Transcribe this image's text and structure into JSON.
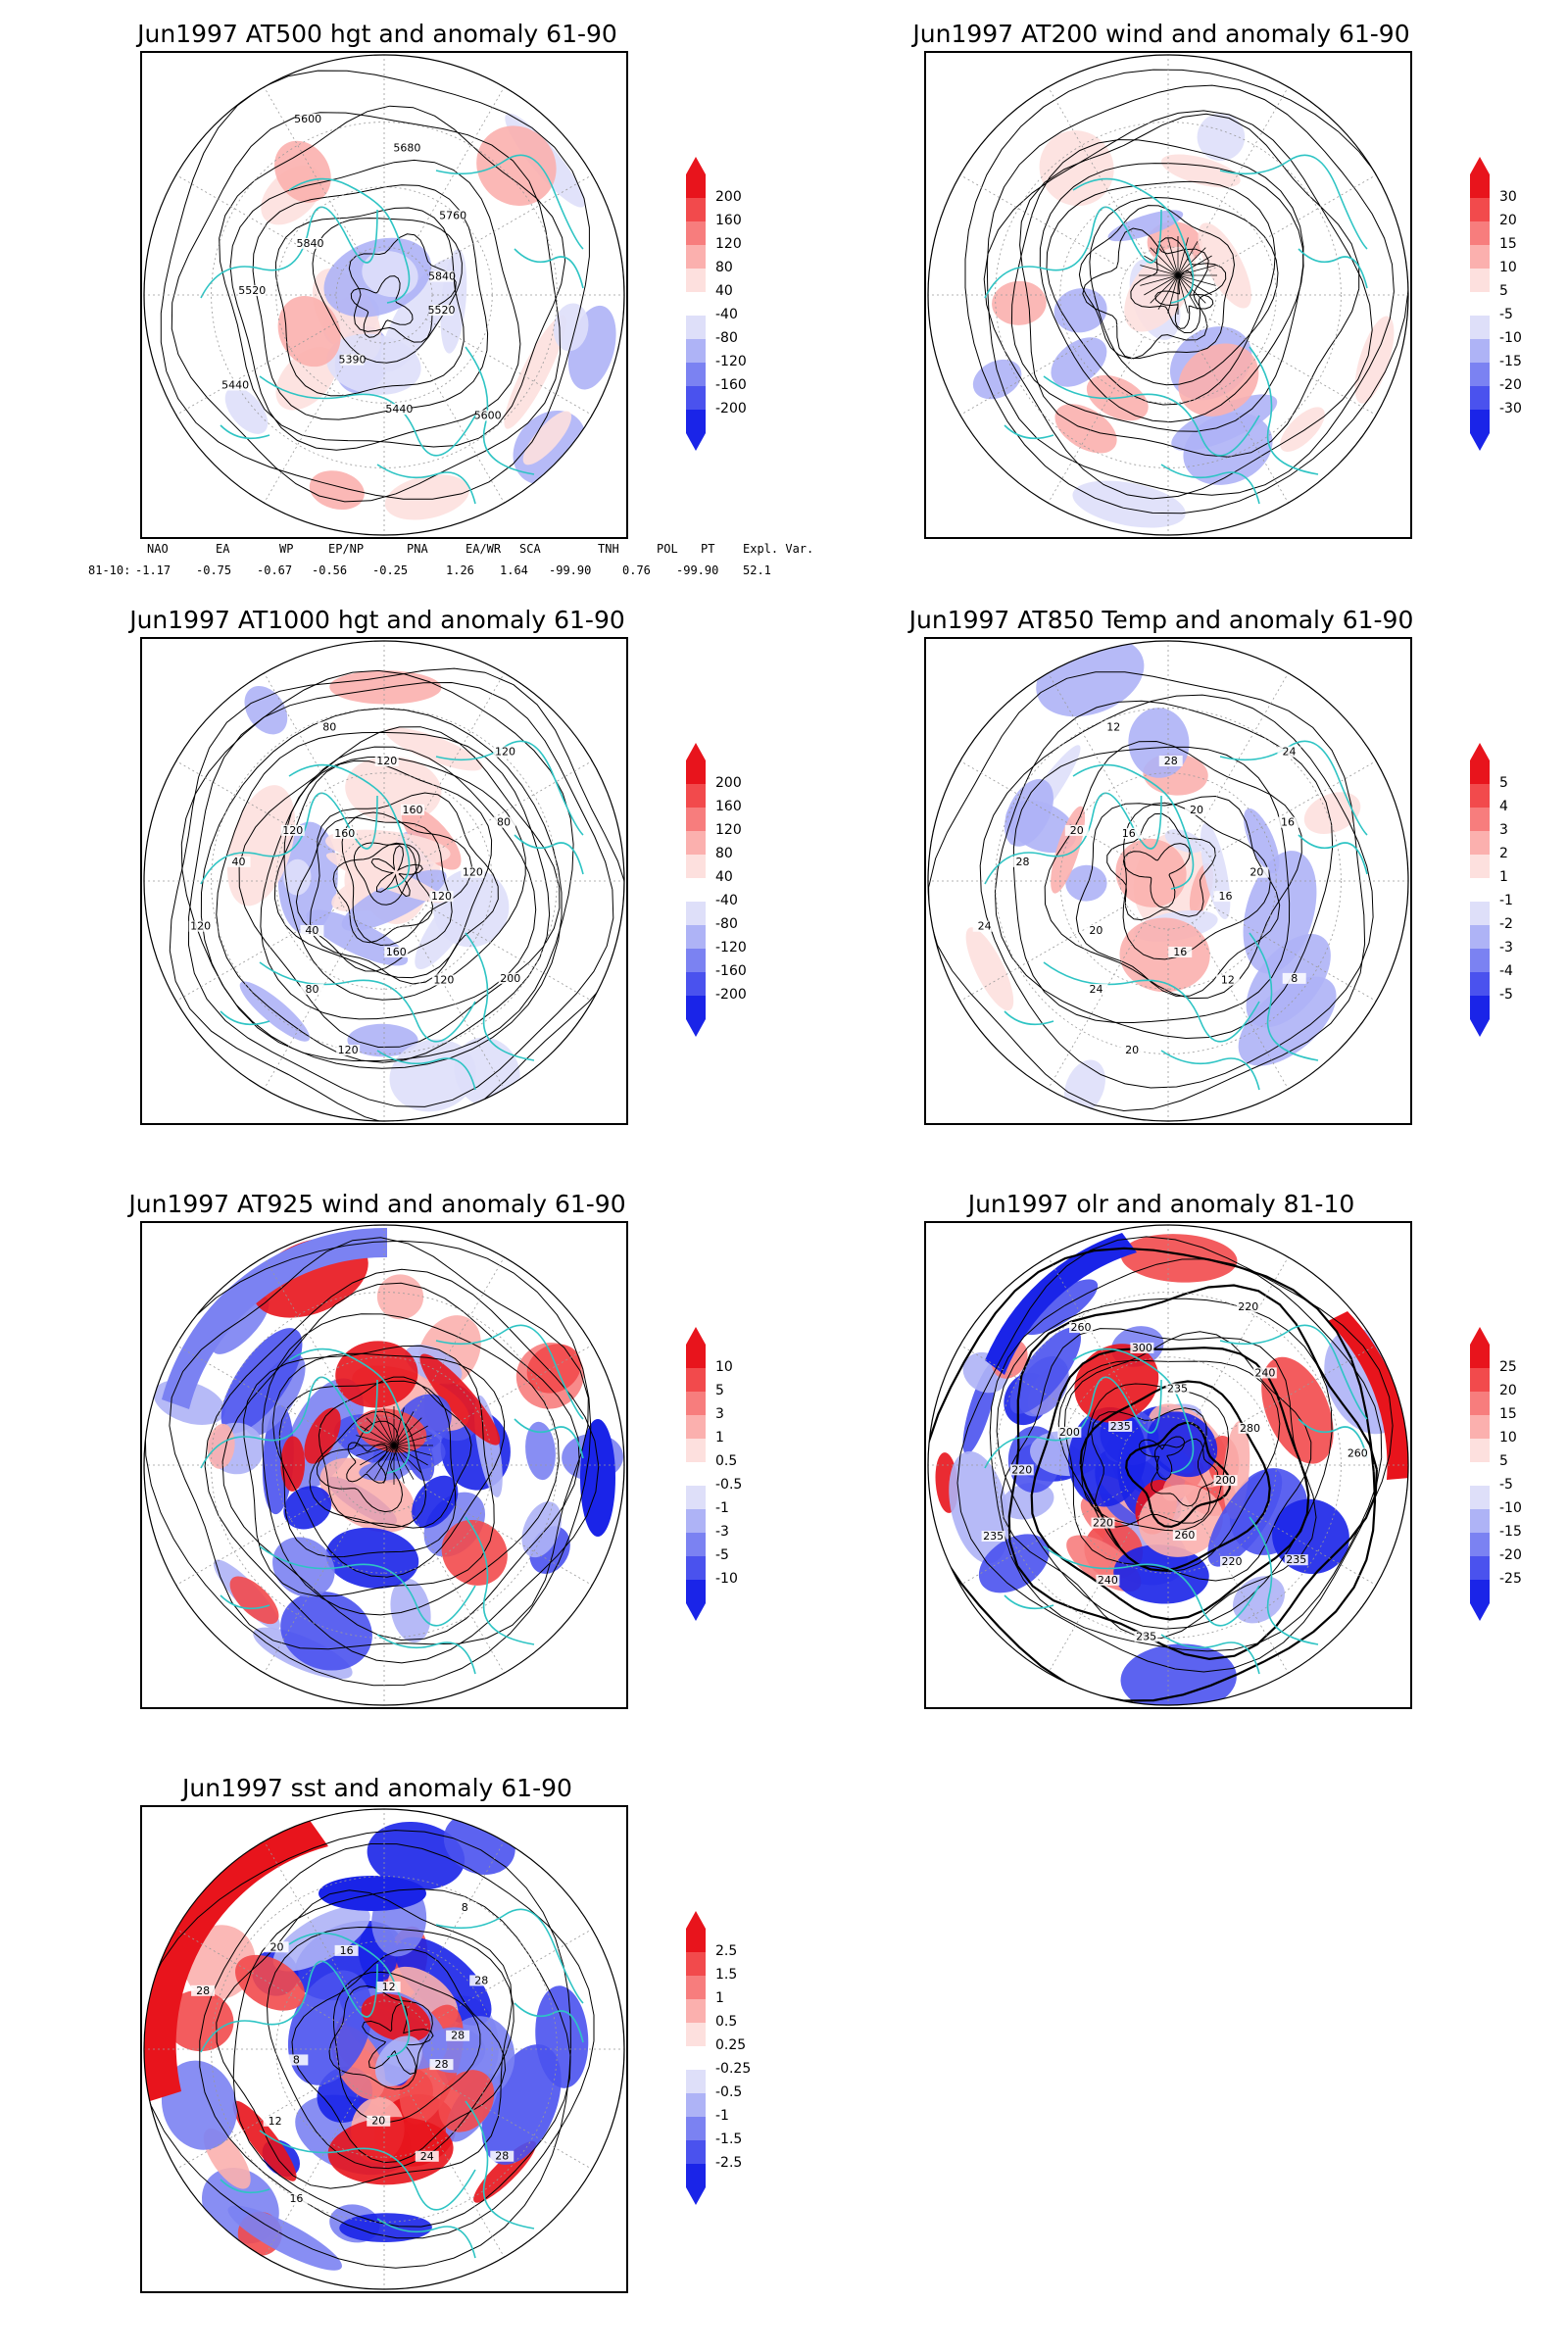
{
  "colors": {
    "coast": "#2ec4c4",
    "contour": "#000000",
    "grid": "#9a9a9a",
    "positive": "#e8242a",
    "negative": "#2a3cf0"
  },
  "panels": [
    {
      "id": "at500",
      "title": "Jun1997 AT500 hgt and anomaly 61-90",
      "colorbar": [
        "200",
        "160",
        "120",
        "80",
        "40",
        "-40",
        "-80",
        "-120",
        "-160",
        "-200"
      ],
      "contour_labels": [
        "5520",
        "5600",
        "5440",
        "5390",
        "5440",
        "5520",
        "5840",
        "5600",
        "5680",
        "5760",
        "5840"
      ]
    },
    {
      "id": "at200",
      "title": "Jun1997 AT200 wind and anomaly 61-90",
      "colorbar": [
        "30",
        "20",
        "15",
        "10",
        "5",
        "-5",
        "-10",
        "-15",
        "-20",
        "-30"
      ],
      "contour_labels": []
    },
    {
      "id": "at1000",
      "title": "Jun1997 AT1000 hgt and anomaly 61-90",
      "colorbar": [
        "200",
        "160",
        "120",
        "80",
        "40",
        "-40",
        "-80",
        "-120",
        "-160",
        "-200"
      ],
      "contour_labels": [
        "120",
        "200",
        "120",
        "160",
        "120",
        "80",
        "40",
        "120",
        "40",
        "120",
        "160",
        "80",
        "120",
        "160",
        "120",
        "80",
        "120"
      ]
    },
    {
      "id": "at850",
      "title": "Jun1997 AT850 Temp and anomaly 61-90",
      "colorbar": [
        "5",
        "4",
        "3",
        "2",
        "1",
        "-1",
        "-2",
        "-3",
        "-4",
        "-5"
      ],
      "contour_labels": [
        "16",
        "8",
        "12",
        "16",
        "20",
        "24",
        "20",
        "24",
        "28",
        "20",
        "16",
        "12",
        "28",
        "20",
        "24",
        "16",
        "20"
      ]
    },
    {
      "id": "at925",
      "title": "Jun1997 AT925 wind and anomaly 61-90",
      "colorbar": [
        "10",
        "5",
        "3",
        "1",
        "0.5",
        "-0.5",
        "-1",
        "-3",
        "-5",
        "-10"
      ],
      "contour_labels": []
    },
    {
      "id": "olr",
      "title": "Jun1997 olr and anomaly 81-10",
      "colorbar": [
        "25",
        "20",
        "15",
        "10",
        "5",
        "-5",
        "-10",
        "-15",
        "-20",
        "-25"
      ],
      "contour_labels": [
        "200",
        "235",
        "220",
        "260",
        "235",
        "240",
        "220",
        "235",
        "220",
        "200",
        "235",
        "260",
        "300",
        "235",
        "220",
        "240",
        "280",
        "260"
      ]
    },
    {
      "id": "sst",
      "title": "Jun1997 sst and anomaly 61-90",
      "colorbar": [
        "2.5",
        "1.5",
        "1",
        "0.5",
        "0.25",
        "-0.25",
        "-0.5",
        "-1",
        "-1.5",
        "-2.5"
      ],
      "contour_labels": [
        "28",
        "28",
        "24",
        "20",
        "16",
        "12",
        "8",
        "28",
        "20",
        "16",
        "12",
        "8",
        "28",
        "28"
      ]
    }
  ],
  "teleconnection": {
    "headers": [
      "NAO",
      "EA",
      "WP",
      "EP/NP",
      "PNA",
      "EA/WR",
      "SCA",
      "TNH",
      "POL",
      "PT",
      "Expl. Var."
    ],
    "row_label": "81-10:",
    "values": [
      "-1.17",
      "-0.75",
      "-0.67",
      "-0.56",
      "-0.25",
      "1.26",
      "1.64",
      "-99.90",
      "0.76",
      "-99.90",
      "52.1"
    ]
  }
}
